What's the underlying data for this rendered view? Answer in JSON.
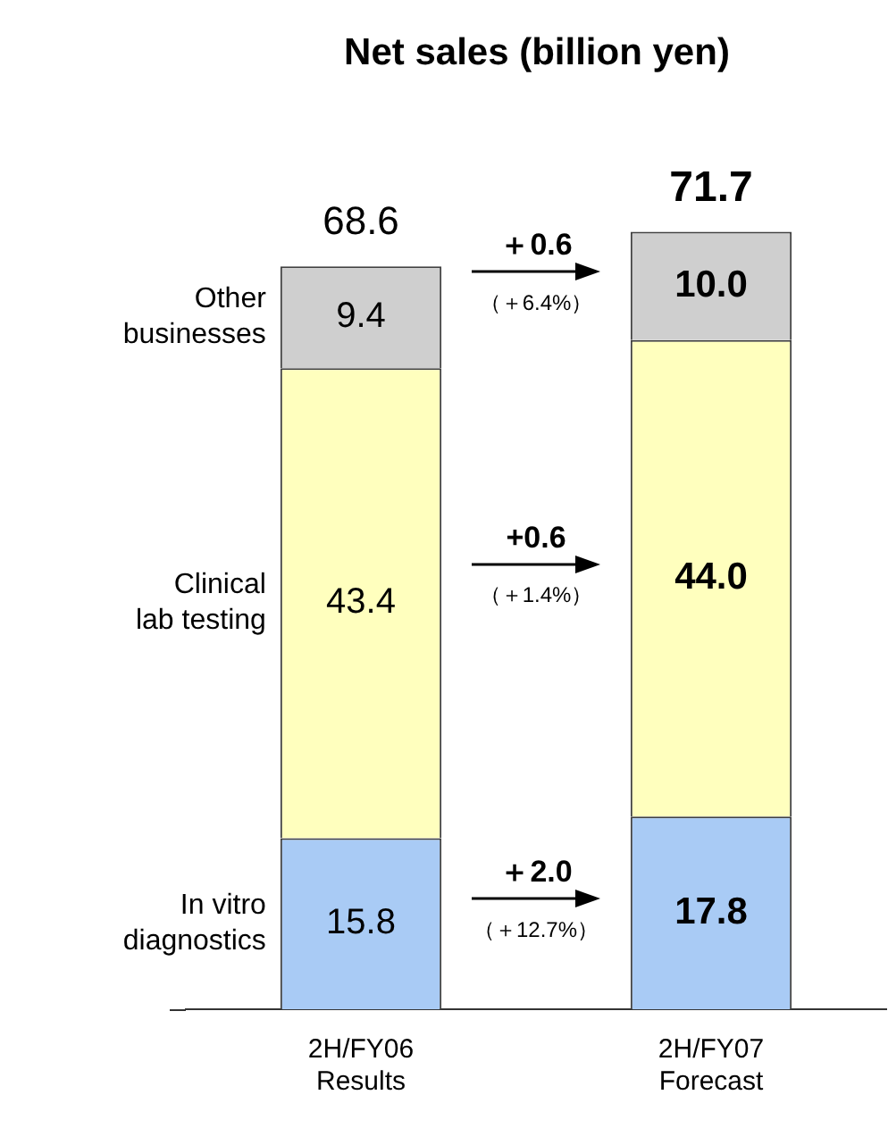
{
  "chart_data": {
    "type": "bar",
    "title": "Net sales (billion yen)",
    "categories": [
      "2H/FY06\nResults",
      "2H/FY07\nForecast"
    ],
    "stacked": true,
    "legend": false,
    "grid": false,
    "series": [
      {
        "name": "In vitro\ndiagnostics",
        "color": "#a9cbf5",
        "values": [
          15.8,
          17.8
        ],
        "value_labels": [
          "15.8",
          "17.8"
        ]
      },
      {
        "name": "Clinical\nlab testing",
        "color": "#ffffbe",
        "values": [
          43.4,
          44.0
        ],
        "value_labels": [
          "43.4",
          "44.0"
        ]
      },
      {
        "name": "Other\nbusinesses",
        "color": "#cfcfcf",
        "values": [
          9.4,
          10.0
        ],
        "value_labels": [
          "9.4",
          "10.0"
        ]
      }
    ],
    "totals": [
      "68.6",
      "71.7"
    ],
    "annotations": [
      "＋2.0",
      "（＋12.7%）",
      "+0.6",
      "（＋1.4%）",
      "＋0.6",
      "（＋6.4%）"
    ]
  }
}
